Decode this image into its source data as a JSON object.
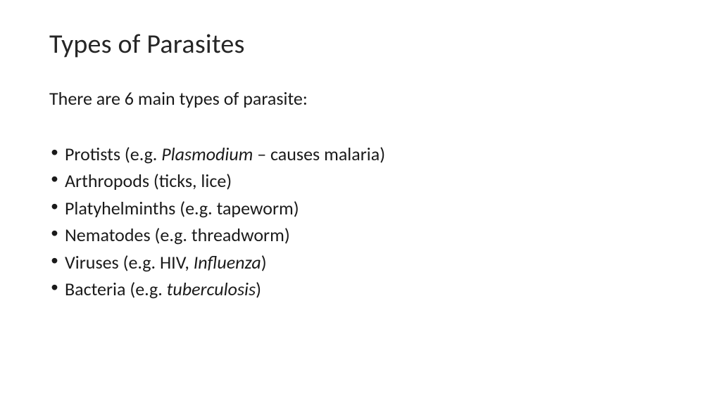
{
  "slide": {
    "title": "Types of Parasites",
    "intro": "There are 6 main types of parasite:",
    "bullets": [
      {
        "prefix": "Protists (e.g. ",
        "italic": "Plasmodium",
        "suffix": " – causes malaria)"
      },
      {
        "prefix": "Arthropods (ticks, lice)",
        "italic": "",
        "suffix": ""
      },
      {
        "prefix": "Platyhelminths (e.g. tapeworm)",
        "italic": "",
        "suffix": ""
      },
      {
        "prefix": "Nematodes (e.g. threadworm)",
        "italic": "",
        "suffix": ""
      },
      {
        "prefix": "Viruses (e.g. HIV, ",
        "italic": "Influenza",
        "suffix": ")"
      },
      {
        "prefix": "Bacteria (e.g. ",
        "italic": "tuberculosis",
        "suffix": ")"
      }
    ]
  },
  "styles": {
    "background_color": "#ffffff",
    "text_color": "#1a1a1a",
    "title_fontsize": 38,
    "body_fontsize": 26,
    "font_family": "Calibri",
    "bullet_line_height": 1.48
  }
}
